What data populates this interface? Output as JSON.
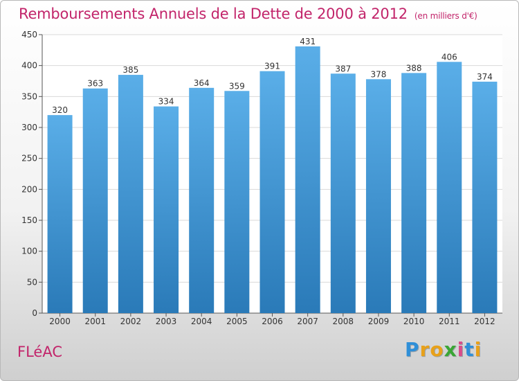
{
  "title": "Remboursements Annuels de la Dette de 2000 à 2012",
  "unit": "(en milliers d'€)",
  "commune": "FLéAC",
  "brand": {
    "letters": [
      "P",
      "r",
      "o",
      "x",
      "i",
      "t",
      "i"
    ],
    "colors": [
      "#2f8fd8",
      "#e8a11a",
      "#e8a11a",
      "#3aa635",
      "#d94c8a",
      "#2f8fd8",
      "#e8a11a"
    ]
  },
  "chart_data": {
    "type": "bar",
    "title": "Remboursements Annuels de la Dette de 2000 à 2012",
    "xlabel": "",
    "ylabel": "",
    "categories": [
      "2000",
      "2001",
      "2002",
      "2003",
      "2004",
      "2005",
      "2006",
      "2007",
      "2008",
      "2009",
      "2010",
      "2011",
      "2012"
    ],
    "values": [
      320,
      363,
      385,
      334,
      364,
      359,
      391,
      431,
      387,
      378,
      388,
      406,
      374
    ],
    "ylim": [
      0,
      450
    ],
    "yticks": [
      0,
      50,
      100,
      150,
      200,
      250,
      300,
      350,
      400,
      450
    ],
    "grid": true,
    "bar_color_top": "#5aaee8",
    "bar_color_bottom": "#2a7ab8"
  }
}
